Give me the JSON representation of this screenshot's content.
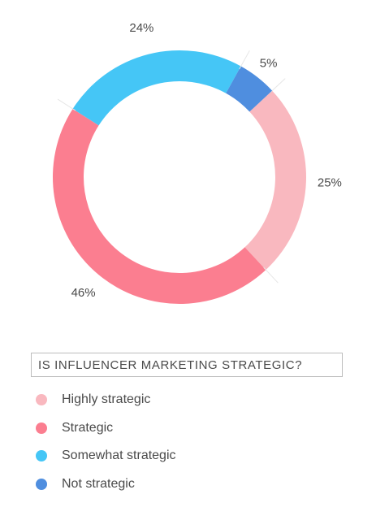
{
  "chart_data": {
    "type": "pie",
    "title": "IS INFLUENCER MARKETING STRATEGIC?",
    "legend_placement": "bottom",
    "slices": [
      {
        "name": "Highly strategic",
        "value": 25,
        "label": "25%",
        "color": "#f9b8bf"
      },
      {
        "name": "Strategic",
        "value": 46,
        "label": "46%",
        "color": "#fb7e90"
      },
      {
        "name": "Somewhat strategic",
        "value": 24,
        "label": "24%",
        "color": "#45c6f6"
      },
      {
        "name": "Not strategic",
        "value": 5,
        "label": "5%",
        "color": "#4f8edf"
      }
    ]
  }
}
